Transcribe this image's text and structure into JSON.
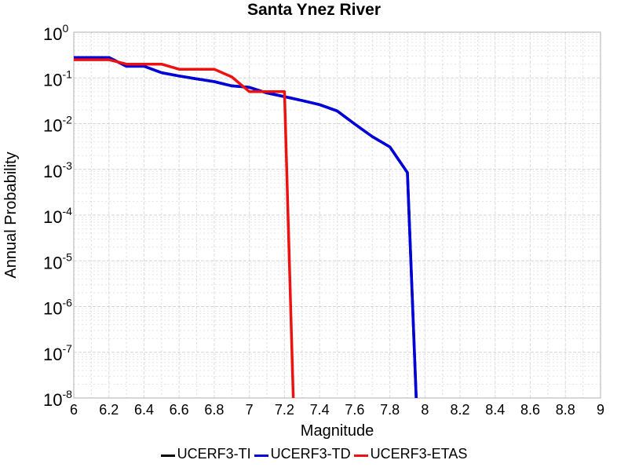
{
  "chart_data": {
    "type": "line",
    "title": "Santa Ynez River",
    "xlabel": "Magnitude",
    "ylabel": "Annual Probability",
    "xlim": [
      6,
      9
    ],
    "ylim": [
      1e-08,
      1
    ],
    "yscale": "log",
    "grid": true,
    "legend_position": "bottom",
    "x_ticks": [
      "6",
      "6.2",
      "6.4",
      "6.6",
      "6.8",
      "7",
      "7.2",
      "7.4",
      "7.6",
      "7.8",
      "8",
      "8.2",
      "8.4",
      "8.6",
      "8.8",
      "9"
    ],
    "y_ticks": [
      {
        "base": "10",
        "exp": "0"
      },
      {
        "base": "10",
        "exp": "-1"
      },
      {
        "base": "10",
        "exp": "-2"
      },
      {
        "base": "10",
        "exp": "-3"
      },
      {
        "base": "10",
        "exp": "-4"
      },
      {
        "base": "10",
        "exp": "-5"
      },
      {
        "base": "10",
        "exp": "-6"
      },
      {
        "base": "10",
        "exp": "-7"
      },
      {
        "base": "10",
        "exp": "-8"
      }
    ],
    "series": [
      {
        "name": "UCERF3-TI",
        "color": "#000000",
        "points": [
          [
            6.0,
            0.28
          ],
          [
            6.1,
            0.28
          ],
          [
            6.2,
            0.28
          ],
          [
            6.3,
            0.18
          ],
          [
            6.4,
            0.18
          ],
          [
            6.5,
            0.13
          ],
          [
            6.6,
            0.11
          ],
          [
            6.7,
            0.095
          ],
          [
            6.8,
            0.083
          ],
          [
            6.9,
            0.067
          ],
          [
            7.0,
            0.062
          ],
          [
            7.1,
            0.047
          ],
          [
            7.2,
            0.039
          ],
          [
            7.3,
            0.032
          ],
          [
            7.4,
            0.026
          ],
          [
            7.5,
            0.019
          ],
          [
            7.6,
            0.0098
          ],
          [
            7.7,
            0.0052
          ],
          [
            7.8,
            0.0031
          ],
          [
            7.9,
            0.00085
          ],
          [
            7.95,
            1e-08
          ]
        ]
      },
      {
        "name": "UCERF3-TD",
        "color": "#0000dd",
        "points": [
          [
            6.0,
            0.28
          ],
          [
            6.1,
            0.28
          ],
          [
            6.2,
            0.28
          ],
          [
            6.3,
            0.18
          ],
          [
            6.4,
            0.18
          ],
          [
            6.5,
            0.13
          ],
          [
            6.6,
            0.11
          ],
          [
            6.7,
            0.095
          ],
          [
            6.8,
            0.083
          ],
          [
            6.9,
            0.067
          ],
          [
            7.0,
            0.062
          ],
          [
            7.1,
            0.047
          ],
          [
            7.2,
            0.039
          ],
          [
            7.3,
            0.032
          ],
          [
            7.4,
            0.026
          ],
          [
            7.5,
            0.019
          ],
          [
            7.6,
            0.0098
          ],
          [
            7.7,
            0.0052
          ],
          [
            7.8,
            0.0031
          ],
          [
            7.9,
            0.00085
          ],
          [
            7.95,
            1e-08
          ]
        ]
      },
      {
        "name": "UCERF3-ETAS",
        "color": "#ee1111",
        "points": [
          [
            6.0,
            0.25
          ],
          [
            6.1,
            0.25
          ],
          [
            6.2,
            0.25
          ],
          [
            6.3,
            0.2
          ],
          [
            6.4,
            0.2
          ],
          [
            6.5,
            0.2
          ],
          [
            6.6,
            0.155
          ],
          [
            6.7,
            0.155
          ],
          [
            6.8,
            0.155
          ],
          [
            6.9,
            0.105
          ],
          [
            7.0,
            0.05
          ],
          [
            7.1,
            0.05
          ],
          [
            7.2,
            0.05
          ],
          [
            7.25,
            1e-08
          ]
        ]
      }
    ]
  }
}
